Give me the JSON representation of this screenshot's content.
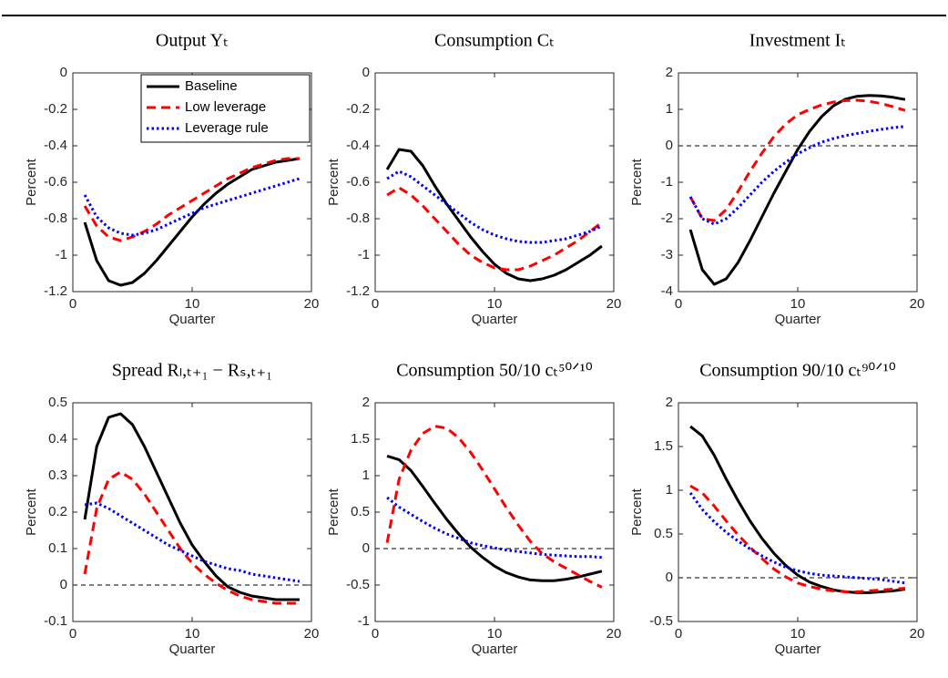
{
  "chart_data": [
    {
      "type": "line",
      "title": "Output Yₜ",
      "xlabel": "Quarter",
      "ylabel": "Percent",
      "x": [
        1,
        2,
        3,
        4,
        5,
        6,
        7,
        8,
        9,
        10,
        11,
        12,
        13,
        14,
        15,
        16,
        17,
        18,
        19
      ],
      "xlim": [
        0,
        20
      ],
      "xticks": [
        0,
        10,
        20
      ],
      "ylim": [
        -1.2,
        0
      ],
      "yticks": [
        -1.2,
        -1,
        -0.8,
        -0.6,
        -0.4,
        -0.2,
        0
      ],
      "legend": "upper right",
      "series": [
        {
          "name": "Baseline",
          "color": "#000000",
          "linestyle": "solid",
          "values": [
            -0.82,
            -1.03,
            -1.14,
            -1.165,
            -1.15,
            -1.1,
            -1.03,
            -0.95,
            -0.87,
            -0.79,
            -0.72,
            -0.66,
            -0.61,
            -0.57,
            -0.53,
            -0.51,
            -0.49,
            -0.48,
            -0.47
          ]
        },
        {
          "name": "Low leverage",
          "color": "#ff0000",
          "linestyle": "dashed",
          "values": [
            -0.73,
            -0.84,
            -0.9,
            -0.92,
            -0.9,
            -0.87,
            -0.83,
            -0.78,
            -0.74,
            -0.7,
            -0.66,
            -0.62,
            -0.58,
            -0.55,
            -0.52,
            -0.5,
            -0.48,
            -0.47,
            -0.47
          ]
        },
        {
          "name": "Leverage rule",
          "color": "#0000ff",
          "linestyle": "dotted",
          "values": [
            -0.67,
            -0.79,
            -0.85,
            -0.88,
            -0.89,
            -0.88,
            -0.86,
            -0.83,
            -0.8,
            -0.77,
            -0.74,
            -0.72,
            -0.7,
            -0.68,
            -0.66,
            -0.64,
            -0.62,
            -0.6,
            -0.58
          ]
        }
      ]
    },
    {
      "type": "line",
      "title": "Consumption Cₜ",
      "xlabel": "Quarter",
      "ylabel": "Percent",
      "x": [
        1,
        2,
        3,
        4,
        5,
        6,
        7,
        8,
        9,
        10,
        11,
        12,
        13,
        14,
        15,
        16,
        17,
        18,
        19
      ],
      "xlim": [
        0,
        20
      ],
      "xticks": [
        0,
        10,
        20
      ],
      "ylim": [
        -1.2,
        0
      ],
      "yticks": [
        -1.2,
        -1,
        -0.8,
        -0.6,
        -0.4,
        -0.2,
        0
      ],
      "series": [
        {
          "color": "#000000",
          "linestyle": "solid",
          "values": [
            -0.53,
            -0.42,
            -0.43,
            -0.51,
            -0.62,
            -0.72,
            -0.81,
            -0.9,
            -0.98,
            -1.05,
            -1.1,
            -1.13,
            -1.14,
            -1.13,
            -1.11,
            -1.08,
            -1.04,
            -1.0,
            -0.95
          ]
        },
        {
          "color": "#ff0000",
          "linestyle": "dashed",
          "values": [
            -0.67,
            -0.63,
            -0.67,
            -0.73,
            -0.8,
            -0.87,
            -0.94,
            -1.0,
            -1.04,
            -1.07,
            -1.08,
            -1.08,
            -1.06,
            -1.03,
            -1.0,
            -0.96,
            -0.92,
            -0.87,
            -0.82
          ]
        },
        {
          "color": "#0000ff",
          "linestyle": "dotted",
          "values": [
            -0.58,
            -0.54,
            -0.57,
            -0.62,
            -0.67,
            -0.72,
            -0.77,
            -0.82,
            -0.86,
            -0.89,
            -0.91,
            -0.925,
            -0.93,
            -0.93,
            -0.92,
            -0.91,
            -0.89,
            -0.87,
            -0.84
          ]
        }
      ]
    },
    {
      "type": "line",
      "title": "Investment Iₜ",
      "xlabel": "Quarter",
      "ylabel": "Percent",
      "x": [
        1,
        2,
        3,
        4,
        5,
        6,
        7,
        8,
        9,
        10,
        11,
        12,
        13,
        14,
        15,
        16,
        17,
        18,
        19
      ],
      "xlim": [
        0,
        20
      ],
      "xticks": [
        0,
        10,
        20
      ],
      "ylim": [
        -4,
        2
      ],
      "yticks": [
        -4,
        -3,
        -2,
        -1,
        0,
        1,
        2
      ],
      "hline": 0,
      "series": [
        {
          "color": "#000000",
          "linestyle": "solid",
          "values": [
            -2.3,
            -3.4,
            -3.8,
            -3.65,
            -3.2,
            -2.6,
            -1.95,
            -1.3,
            -0.7,
            -0.1,
            0.4,
            0.8,
            1.1,
            1.28,
            1.36,
            1.38,
            1.37,
            1.33,
            1.27
          ]
        },
        {
          "color": "#ff0000",
          "linestyle": "dashed",
          "values": [
            -1.4,
            -2.0,
            -2.05,
            -1.75,
            -1.25,
            -0.7,
            -0.2,
            0.25,
            0.6,
            0.85,
            1.0,
            1.12,
            1.2,
            1.24,
            1.25,
            1.22,
            1.16,
            1.07,
            0.97
          ]
        },
        {
          "color": "#0000ff",
          "linestyle": "dotted",
          "values": [
            -1.4,
            -2.0,
            -2.15,
            -2.0,
            -1.7,
            -1.35,
            -1.0,
            -0.7,
            -0.45,
            -0.22,
            -0.05,
            0.1,
            0.2,
            0.28,
            0.34,
            0.4,
            0.45,
            0.5,
            0.53
          ]
        }
      ]
    },
    {
      "type": "line",
      "title": "Spread Rₗ,ₜ₊₁ − Rₛ,ₜ₊₁",
      "xlabel": "Quarter",
      "ylabel": "Percent",
      "x": [
        1,
        2,
        3,
        4,
        5,
        6,
        7,
        8,
        9,
        10,
        11,
        12,
        13,
        14,
        15,
        16,
        17,
        18,
        19
      ],
      "xlim": [
        0,
        20
      ],
      "xticks": [
        0,
        10,
        20
      ],
      "ylim": [
        -0.1,
        0.5
      ],
      "yticks": [
        -0.1,
        0,
        0.1,
        0.2,
        0.3,
        0.4,
        0.5
      ],
      "hline": 0,
      "series": [
        {
          "color": "#000000",
          "linestyle": "solid",
          "values": [
            0.18,
            0.38,
            0.46,
            0.47,
            0.44,
            0.38,
            0.31,
            0.24,
            0.17,
            0.11,
            0.065,
            0.025,
            -0.005,
            -0.02,
            -0.03,
            -0.035,
            -0.04,
            -0.04,
            -0.04
          ]
        },
        {
          "color": "#ff0000",
          "linestyle": "dashed",
          "values": [
            0.03,
            0.21,
            0.29,
            0.31,
            0.29,
            0.25,
            0.2,
            0.15,
            0.1,
            0.06,
            0.03,
            0.005,
            -0.015,
            -0.03,
            -0.04,
            -0.045,
            -0.05,
            -0.05,
            -0.05
          ]
        },
        {
          "color": "#0000ff",
          "linestyle": "dotted",
          "values": [
            0.22,
            0.225,
            0.21,
            0.19,
            0.17,
            0.15,
            0.13,
            0.11,
            0.095,
            0.08,
            0.065,
            0.055,
            0.045,
            0.04,
            0.03,
            0.025,
            0.02,
            0.015,
            0.01
          ]
        }
      ]
    },
    {
      "type": "line",
      "title": "Consumption 50/10 cₜ⁵⁰ᐟ¹⁰",
      "xlabel": "Quarter",
      "ylabel": "Percent",
      "x": [
        1,
        2,
        3,
        4,
        5,
        6,
        7,
        8,
        9,
        10,
        11,
        12,
        13,
        14,
        15,
        16,
        17,
        18,
        19
      ],
      "xlim": [
        0,
        20
      ],
      "xticks": [
        0,
        10,
        20
      ],
      "ylim": [
        -1,
        2
      ],
      "yticks": [
        -1,
        -0.5,
        0,
        0.5,
        1,
        1.5,
        2
      ],
      "hline": 0,
      "series": [
        {
          "color": "#000000",
          "linestyle": "solid",
          "values": [
            1.27,
            1.22,
            1.07,
            0.85,
            0.62,
            0.4,
            0.2,
            0.02,
            -0.12,
            -0.24,
            -0.33,
            -0.39,
            -0.43,
            -0.44,
            -0.44,
            -0.42,
            -0.39,
            -0.35,
            -0.31
          ]
        },
        {
          "color": "#ff0000",
          "linestyle": "dashed",
          "values": [
            0.08,
            0.95,
            1.35,
            1.58,
            1.68,
            1.65,
            1.52,
            1.32,
            1.08,
            0.82,
            0.56,
            0.32,
            0.1,
            -0.07,
            -0.18,
            -0.27,
            -0.36,
            -0.45,
            -0.53
          ]
        },
        {
          "color": "#0000ff",
          "linestyle": "dotted",
          "values": [
            0.7,
            0.57,
            0.47,
            0.37,
            0.28,
            0.2,
            0.14,
            0.08,
            0.04,
            0.01,
            -0.02,
            -0.04,
            -0.06,
            -0.08,
            -0.09,
            -0.1,
            -0.11,
            -0.11,
            -0.12
          ]
        }
      ]
    },
    {
      "type": "line",
      "title": "Consumption 90/10 cₜ⁹⁰ᐟ¹⁰",
      "xlabel": "Quarter",
      "ylabel": "Percent",
      "x": [
        1,
        2,
        3,
        4,
        5,
        6,
        7,
        8,
        9,
        10,
        11,
        12,
        13,
        14,
        15,
        16,
        17,
        18,
        19
      ],
      "xlim": [
        0,
        20
      ],
      "xticks": [
        0,
        10,
        20
      ],
      "ylim": [
        -0.5,
        2
      ],
      "yticks": [
        -0.5,
        0,
        0.5,
        1,
        1.5,
        2
      ],
      "hline": 0,
      "series": [
        {
          "color": "#000000",
          "linestyle": "solid",
          "values": [
            1.73,
            1.62,
            1.4,
            1.13,
            0.88,
            0.65,
            0.45,
            0.28,
            0.14,
            0.03,
            -0.05,
            -0.1,
            -0.14,
            -0.16,
            -0.17,
            -0.17,
            -0.16,
            -0.15,
            -0.13
          ]
        },
        {
          "color": "#ff0000",
          "linestyle": "dashed",
          "values": [
            1.05,
            0.97,
            0.82,
            0.65,
            0.49,
            0.35,
            0.22,
            0.1,
            0.01,
            -0.06,
            -0.1,
            -0.13,
            -0.15,
            -0.16,
            -0.16,
            -0.15,
            -0.14,
            -0.13,
            -0.12
          ]
        },
        {
          "color": "#0000ff",
          "linestyle": "dotted",
          "values": [
            0.97,
            0.78,
            0.64,
            0.52,
            0.42,
            0.33,
            0.25,
            0.18,
            0.12,
            0.08,
            0.05,
            0.03,
            0.02,
            0.01,
            0.0,
            -0.01,
            -0.02,
            -0.04,
            -0.06
          ]
        }
      ]
    }
  ]
}
